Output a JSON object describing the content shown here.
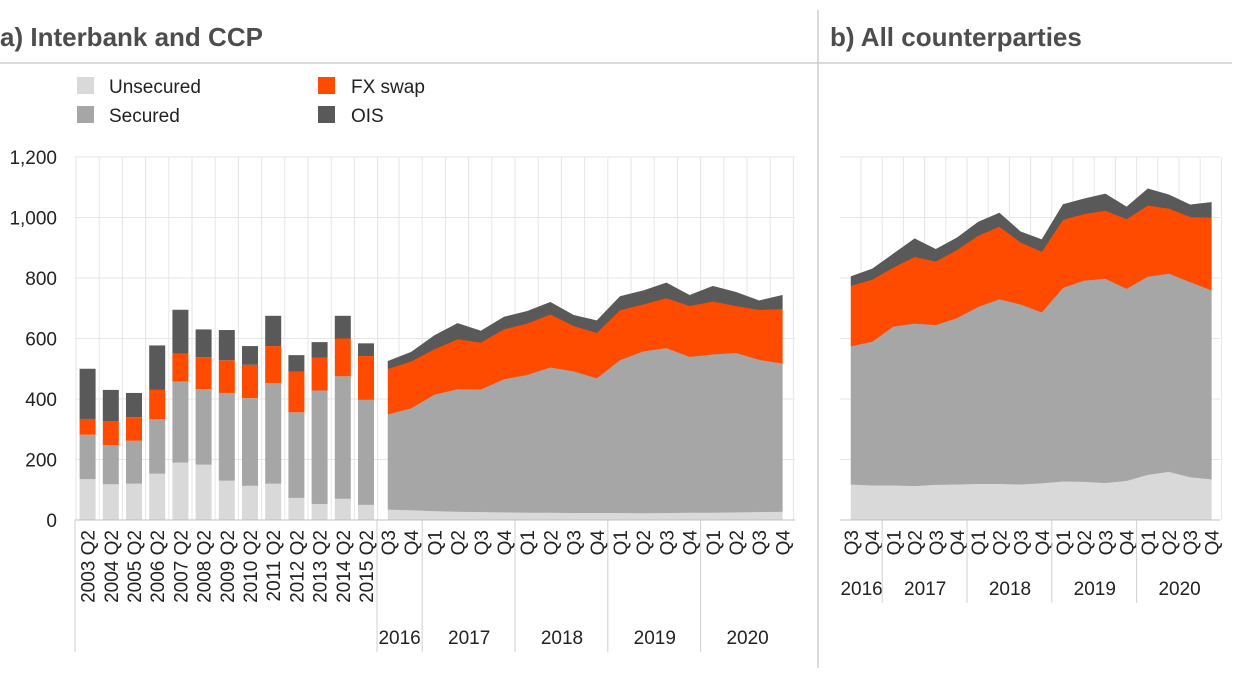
{
  "colors": {
    "unsecured": "#d9d9d9",
    "secured": "#a6a6a6",
    "fx_swap": "#ff4b00",
    "ois": "#595959",
    "title": "#4d4d4d",
    "grid": "#e6e6e6"
  },
  "legend": [
    {
      "key": "unsecured",
      "label": "Unsecured"
    },
    {
      "key": "secured",
      "label": "Secured"
    },
    {
      "key": "fx_swap",
      "label": "FX swap"
    },
    {
      "key": "ois",
      "label": "OIS"
    }
  ],
  "chart_data": [
    {
      "panel": "a",
      "title": "a) Interbank and CCP",
      "type": "stacked bar + stacked area",
      "grid": true,
      "ylim": [
        0,
        1200
      ],
      "yticks": [
        "0",
        "200",
        "400",
        "600",
        "800",
        "1,000",
        "1,200"
      ],
      "bars": {
        "categories": [
          "2003 Q2",
          "2004 Q2",
          "2005 Q2",
          "2006 Q2",
          "2007 Q2",
          "2008 Q2",
          "2009 Q2",
          "2010 Q2",
          "2011 Q2",
          "2012 Q2",
          "2013 Q2",
          "2014 Q2",
          "2015 Q2"
        ],
        "series": [
          {
            "key": "unsecured",
            "values": [
              135,
              118,
              120,
              153,
              190,
              183,
              130,
              113,
              120,
              73,
              53,
              70,
              50
            ]
          },
          {
            "key": "secured",
            "values": [
              147,
              130,
              142,
              180,
              268,
              250,
              290,
              290,
              333,
              283,
              375,
              405,
              347
            ]
          },
          {
            "key": "fx_swap",
            "values": [
              52,
              78,
              78,
              97,
              92,
              105,
              108,
              110,
              122,
              135,
              108,
              125,
              145
            ]
          },
          {
            "key": "ois",
            "values": [
              166,
              104,
              80,
              147,
              145,
              92,
              100,
              62,
              100,
              54,
              52,
              75,
              42
            ]
          }
        ]
      },
      "area": {
        "quarters": [
          "Q3",
          "Q4",
          "Q1",
          "Q2",
          "Q3",
          "Q4",
          "Q1",
          "Q2",
          "Q3",
          "Q4",
          "Q1",
          "Q2",
          "Q3",
          "Q4",
          "Q1",
          "Q2",
          "Q3",
          "Q4"
        ],
        "years": [
          "2016",
          "2017",
          "2018",
          "2019",
          "2020"
        ],
        "year_spans": [
          2,
          4,
          4,
          4,
          4
        ],
        "series": [
          {
            "key": "unsecured",
            "values": [
              35,
              33,
              30,
              28,
              27,
              26,
              25,
              25,
              24,
              24,
              24,
              23,
              24,
              25,
              25,
              26,
              27,
              28
            ]
          },
          {
            "key": "secured",
            "values": [
              315,
              337,
              385,
              405,
              405,
              440,
              455,
              480,
              468,
              445,
              505,
              535,
              545,
              515,
              523,
              527,
              503,
              490
            ]
          },
          {
            "key": "fx_swap",
            "values": [
              150,
              155,
              150,
              165,
              155,
              165,
              170,
              175,
              150,
              150,
              165,
              155,
              165,
              168,
              175,
              155,
              165,
              180
            ]
          },
          {
            "key": "ois",
            "values": [
              25,
              30,
              45,
              52,
              38,
              40,
              40,
              40,
              35,
              40,
              45,
              45,
              50,
              35,
              50,
              45,
              30,
              45
            ]
          }
        ]
      }
    },
    {
      "panel": "b",
      "title": "b) All counterparties",
      "type": "stacked area",
      "grid": true,
      "ylim": [
        0,
        1200
      ],
      "quarters": [
        "Q3",
        "Q4",
        "Q1",
        "Q2",
        "Q3",
        "Q4",
        "Q1",
        "Q2",
        "Q3",
        "Q4",
        "Q1",
        "Q2",
        "Q3",
        "Q4",
        "Q1",
        "Q2",
        "Q3",
        "Q4"
      ],
      "years": [
        "2016",
        "2017",
        "2018",
        "2019",
        "2020"
      ],
      "year_spans": [
        2,
        4,
        4,
        4,
        4
      ],
      "series": [
        {
          "key": "unsecured",
          "values": [
            118,
            115,
            115,
            113,
            117,
            118,
            120,
            120,
            118,
            122,
            128,
            127,
            123,
            130,
            150,
            160,
            142,
            135
          ]
        },
        {
          "key": "secured",
          "values": [
            457,
            475,
            525,
            537,
            528,
            550,
            585,
            610,
            595,
            565,
            640,
            665,
            675,
            635,
            655,
            655,
            645,
            625
          ]
        },
        {
          "key": "fx_swap",
          "values": [
            200,
            205,
            195,
            220,
            210,
            225,
            235,
            240,
            205,
            200,
            225,
            220,
            225,
            230,
            235,
            215,
            215,
            240
          ]
        },
        {
          "key": "ois",
          "values": [
            30,
            35,
            45,
            60,
            40,
            40,
            45,
            45,
            35,
            40,
            50,
            50,
            55,
            40,
            55,
            45,
            40,
            50
          ]
        }
      ]
    }
  ]
}
